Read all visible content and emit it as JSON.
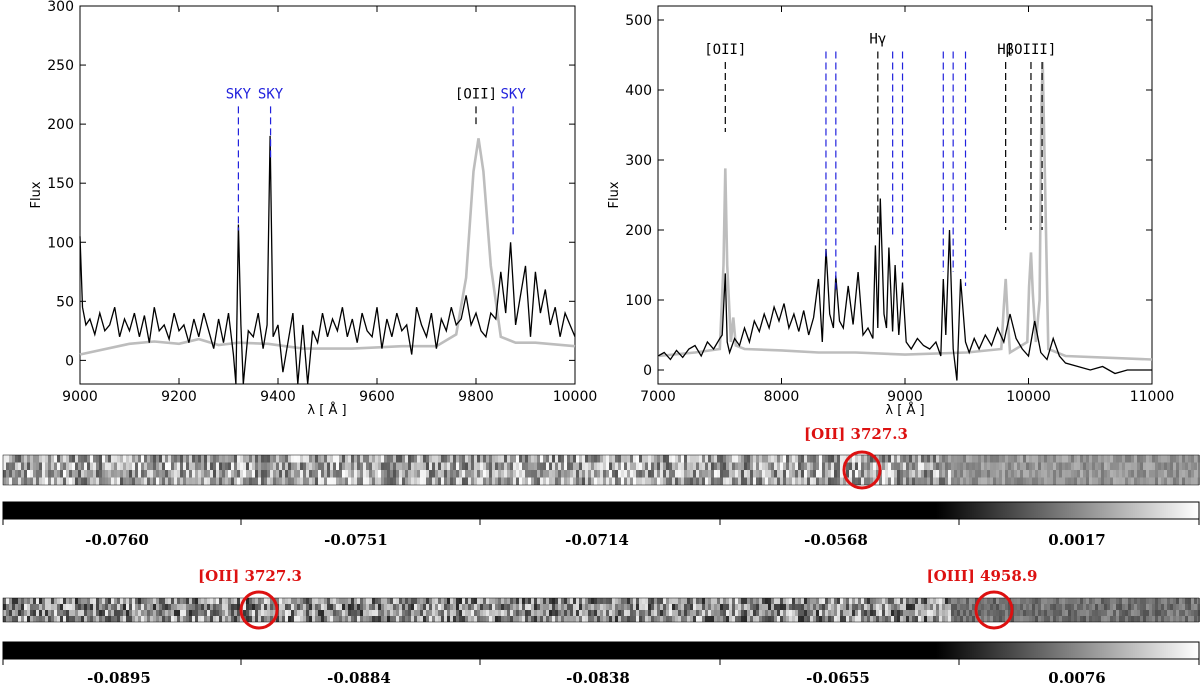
{
  "colors": {
    "observed": "#000000",
    "model": "#bdbdbd",
    "sky_marker": "#2222dd",
    "line_marker": "#000000",
    "highlight": "#dd1111"
  },
  "chart_data": [
    {
      "type": "line",
      "ylabel": "Flux",
      "xlabel": "λ [ Å ]",
      "xlim": [
        9000,
        10000
      ],
      "ylim": [
        -20,
        300
      ],
      "xticks": [
        9000,
        9200,
        9400,
        9600,
        9800,
        10000
      ],
      "yticks": [
        0,
        50,
        100,
        150,
        200,
        250,
        300
      ],
      "annotations": [
        {
          "label": "SKY",
          "x": 9320,
          "color": "blue",
          "y_top": 215,
          "y_bottom": 110
        },
        {
          "label": "SKY",
          "x": 9385,
          "color": "blue",
          "y_top": 215,
          "y_bottom": 170
        },
        {
          "label": "[OII]",
          "x": 9800,
          "color": "black",
          "y_top": 215,
          "y_bottom": 200
        },
        {
          "label": "SKY",
          "x": 9875,
          "color": "blue",
          "y_top": 215,
          "y_bottom": 105
        }
      ],
      "series": [
        {
          "color": "grey",
          "x": [
            9000,
            9100,
            9150,
            9200,
            9240,
            9280,
            9320,
            9380,
            9450,
            9550,
            9650,
            9720,
            9760,
            9780,
            9795,
            9805,
            9815,
            9830,
            9850,
            9880,
            9920,
            10000
          ],
          "y": [
            5,
            14,
            16,
            14,
            18,
            13,
            15,
            14,
            10,
            10,
            12,
            12,
            22,
            70,
            160,
            188,
            160,
            80,
            20,
            15,
            15,
            12
          ]
        },
        {
          "color": "black",
          "x": [
            9000,
            9005,
            9012,
            9020,
            9030,
            9040,
            9050,
            9060,
            9070,
            9080,
            9090,
            9100,
            9110,
            9120,
            9130,
            9140,
            9150,
            9160,
            9170,
            9180,
            9190,
            9200,
            9210,
            9220,
            9230,
            9240,
            9250,
            9260,
            9270,
            9280,
            9290,
            9300,
            9310,
            9315,
            9320,
            9325,
            9330,
            9340,
            9350,
            9360,
            9370,
            9378,
            9384,
            9390,
            9400,
            9410,
            9420,
            9430,
            9440,
            9450,
            9460,
            9470,
            9480,
            9490,
            9500,
            9510,
            9520,
            9530,
            9540,
            9550,
            9560,
            9570,
            9580,
            9590,
            9600,
            9610,
            9620,
            9630,
            9640,
            9650,
            9660,
            9670,
            9680,
            9690,
            9700,
            9710,
            9720,
            9730,
            9740,
            9750,
            9760,
            9770,
            9780,
            9790,
            9800,
            9810,
            9820,
            9830,
            9840,
            9850,
            9860,
            9870,
            9880,
            9890,
            9900,
            9910,
            9920,
            9930,
            9940,
            9950,
            9960,
            9970,
            9980,
            9990,
            10000
          ],
          "y": [
            105,
            45,
            30,
            35,
            22,
            40,
            25,
            30,
            45,
            20,
            35,
            25,
            40,
            20,
            38,
            15,
            45,
            25,
            30,
            18,
            40,
            25,
            30,
            15,
            35,
            20,
            40,
            25,
            10,
            35,
            15,
            40,
            5,
            -20,
            115,
            30,
            -20,
            25,
            20,
            40,
            10,
            30,
            190,
            20,
            30,
            -10,
            15,
            40,
            -20,
            30,
            -20,
            25,
            15,
            40,
            20,
            35,
            25,
            45,
            20,
            35,
            15,
            40,
            25,
            20,
            45,
            10,
            35,
            20,
            40,
            25,
            30,
            5,
            45,
            30,
            20,
            40,
            10,
            35,
            25,
            45,
            30,
            35,
            55,
            30,
            40,
            25,
            20,
            40,
            35,
            75,
            40,
            100,
            30,
            55,
            80,
            20,
            75,
            40,
            60,
            30,
            45,
            20,
            40,
            30,
            20
          ]
        }
      ]
    },
    {
      "type": "line",
      "ylabel": "Flux",
      "xlabel": "λ [ Å ]",
      "xlim": [
        7000,
        11000
      ],
      "ylim": [
        -20,
        520
      ],
      "xticks": [
        7000,
        8000,
        9000,
        10000,
        11000
      ],
      "yticks": [
        0,
        100,
        200,
        300,
        400,
        500
      ],
      "annotations": [
        {
          "label": "[OII]",
          "x": 7545,
          "color": "black",
          "y_top": 440,
          "y_bottom": 340
        },
        {
          "label": "",
          "x": 8360,
          "color": "blue",
          "y_top": 455,
          "y_bottom": 160
        },
        {
          "label": "",
          "x": 8440,
          "color": "blue",
          "y_top": 455,
          "y_bottom": 110
        },
        {
          "label": "Hγ",
          "x": 8780,
          "color": "black",
          "y_top": 455,
          "y_bottom": 190
        },
        {
          "label": "",
          "x": 8900,
          "color": "blue",
          "y_top": 455,
          "y_bottom": 190
        },
        {
          "label": "",
          "x": 8980,
          "color": "blue",
          "y_top": 455,
          "y_bottom": 130
        },
        {
          "label": "",
          "x": 9310,
          "color": "blue",
          "y_top": 455,
          "y_bottom": 140
        },
        {
          "label": "",
          "x": 9390,
          "color": "blue",
          "y_top": 455,
          "y_bottom": 140
        },
        {
          "label": "",
          "x": 9490,
          "color": "blue",
          "y_top": 455,
          "y_bottom": 120
        },
        {
          "label": "Hβ",
          "x": 9815,
          "color": "black",
          "y_top": 440,
          "y_bottom": 200
        },
        {
          "label": "[OIII]",
          "x": 10020,
          "color": "black",
          "y_top": 440,
          "y_bottom": 200
        },
        {
          "label": "",
          "x": 10110,
          "color": "black",
          "y_top": 440,
          "y_bottom": 200
        }
      ],
      "series": [
        {
          "color": "grey",
          "x": [
            7000,
            7300,
            7500,
            7530,
            7545,
            7560,
            7590,
            7610,
            7630,
            7700,
            8000,
            8300,
            8600,
            9000,
            9500,
            9780,
            9800,
            9815,
            9830,
            9850,
            9990,
            10005,
            10020,
            10035,
            10060,
            10090,
            10105,
            10115,
            10130,
            10160,
            10300,
            11000
          ],
          "y": [
            20,
            25,
            30,
            150,
            288,
            150,
            40,
            75,
            35,
            30,
            28,
            25,
            25,
            22,
            25,
            30,
            90,
            130,
            80,
            25,
            40,
            120,
            168,
            110,
            40,
            100,
            380,
            440,
            300,
            30,
            20,
            15
          ]
        },
        {
          "color": "black",
          "x": [
            7000,
            7050,
            7100,
            7150,
            7200,
            7250,
            7300,
            7350,
            7400,
            7450,
            7500,
            7520,
            7545,
            7560,
            7580,
            7620,
            7660,
            7700,
            7740,
            7780,
            7820,
            7860,
            7900,
            7940,
            7980,
            8020,
            8060,
            8100,
            8140,
            8180,
            8220,
            8260,
            8300,
            8330,
            8360,
            8390,
            8420,
            8440,
            8470,
            8500,
            8540,
            8580,
            8620,
            8660,
            8700,
            8740,
            8760,
            8780,
            8800,
            8830,
            8850,
            8870,
            8900,
            8920,
            8950,
            8980,
            9010,
            9050,
            9100,
            9150,
            9200,
            9250,
            9290,
            9310,
            9330,
            9360,
            9390,
            9420,
            9450,
            9490,
            9520,
            9560,
            9600,
            9650,
            9700,
            9750,
            9800,
            9850,
            9900,
            9950,
            10000,
            10050,
            10100,
            10150,
            10200,
            10250,
            10300,
            10400,
            10500,
            10600,
            10700,
            10800,
            10900,
            11000
          ],
          "y": [
            20,
            25,
            15,
            28,
            18,
            30,
            35,
            20,
            40,
            30,
            45,
            50,
            138,
            40,
            25,
            45,
            35,
            60,
            40,
            70,
            55,
            80,
            60,
            90,
            70,
            95,
            60,
            80,
            55,
            85,
            50,
            75,
            130,
            40,
            173,
            80,
            60,
            135,
            70,
            60,
            120,
            65,
            140,
            50,
            60,
            45,
            178,
            60,
            245,
            80,
            60,
            175,
            55,
            150,
            50,
            125,
            40,
            30,
            45,
            35,
            30,
            40,
            20,
            130,
            50,
            200,
            30,
            -15,
            130,
            40,
            25,
            45,
            30,
            50,
            35,
            60,
            40,
            80,
            45,
            30,
            20,
            70,
            25,
            15,
            45,
            20,
            10,
            5,
            0,
            5,
            -5,
            0,
            0,
            0
          ]
        }
      ]
    },
    {
      "type": "heatmap",
      "name": "2D spectrum 1",
      "highlights": [
        {
          "label": "[OII] 3727.3",
          "position_fraction": 0.72
        }
      ],
      "colorbar_ticks": [
        "-0.0760",
        "-0.0751",
        "-0.0714",
        "-0.0568",
        "0.0017"
      ]
    },
    {
      "type": "heatmap",
      "name": "2D spectrum 2",
      "highlights": [
        {
          "label": "[OII] 3727.3",
          "position_fraction": 0.215
        },
        {
          "label": "[OIII] 4958.9",
          "position_fraction": 0.83
        }
      ],
      "colorbar_ticks": [
        "-0.0895",
        "-0.0884",
        "-0.0838",
        "-0.0655",
        "0.0076"
      ]
    }
  ]
}
